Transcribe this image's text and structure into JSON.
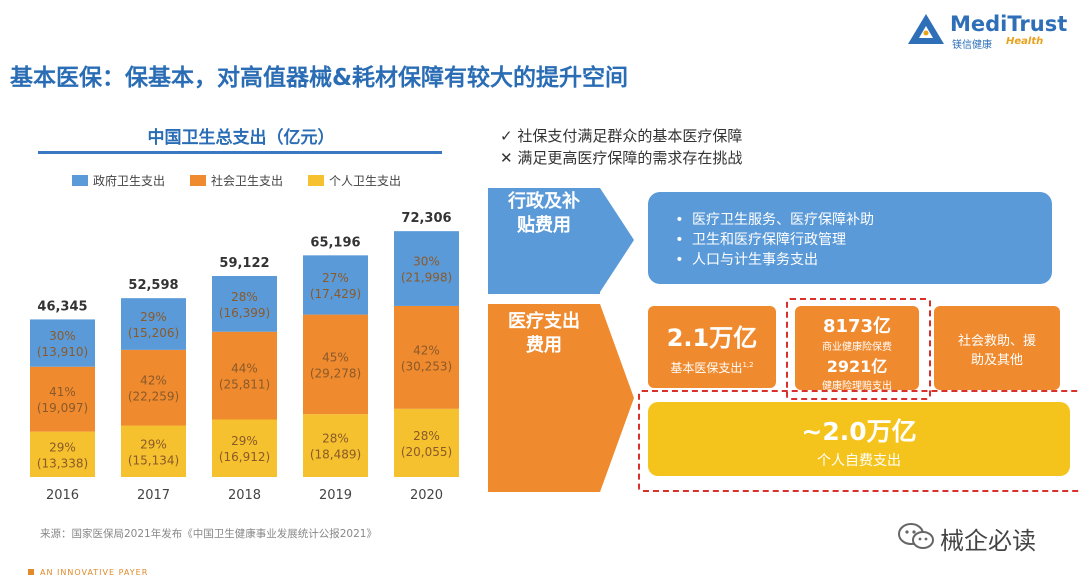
{
  "header": {
    "title": "基本医保：保基本，对高值器械&耗材保障有较大的提升空间",
    "logo_main": "MediTrust",
    "logo_sub": "镁信健康",
    "logo_health": "Health"
  },
  "chart_data": {
    "type": "bar",
    "stacked": true,
    "title": "中国卫生总支出（亿元）",
    "categories": [
      "2016",
      "2017",
      "2018",
      "2019",
      "2020"
    ],
    "totals": [
      "46,345",
      "52,598",
      "59,122",
      "65,196",
      "72,306"
    ],
    "series": [
      {
        "name": "个人卫生支出",
        "color": "#f5c12e",
        "values": [
          13338,
          15134,
          16912,
          18489,
          20055
        ],
        "pct_labels": [
          "29%",
          "29%",
          "29%",
          "28%",
          "28%"
        ],
        "value_labels": [
          "(13,338)",
          "(15,134)",
          "(16,912)",
          "(18,489)",
          "(20,055)"
        ]
      },
      {
        "name": "社会卫生支出",
        "color": "#f08a2e",
        "values": [
          19097,
          22259,
          25811,
          29278,
          30253
        ],
        "pct_labels": [
          "41%",
          "42%",
          "44%",
          "45%",
          "42%"
        ],
        "value_labels": [
          "(19,097)",
          "(22,259)",
          "(25,811)",
          "(29,278)",
          "(30,253)"
        ]
      },
      {
        "name": "政府卫生支出",
        "color": "#5b9ad8",
        "values": [
          13910,
          15206,
          16399,
          17429,
          21998
        ],
        "pct_labels": [
          "30%",
          "29%",
          "28%",
          "27%",
          "30%"
        ],
        "value_labels": [
          "(13,910)",
          "(15,206)",
          "(16,399)",
          "(17,429)",
          "(21,998)"
        ]
      }
    ],
    "legend": [
      "政府卫生支出",
      "社会卫生支出",
      "个人卫生支出"
    ],
    "legend_position": "top-left",
    "ylim": [
      0,
      80000
    ],
    "grid": false
  },
  "source": "来源：国家医保局2021年发布《中国卫生健康事业发展统计公报2021》",
  "footer": "AN INNOVATIVE PAYER",
  "right": {
    "check_line": "社保支付满足群众的基本医疗保障",
    "cross_line": "满足更高医疗保障的需求存在挑战",
    "check_mark": "✓",
    "cross_mark": "✕",
    "cat_admin": "行政及补贴费用",
    "cat_medical": "医疗支出费用",
    "admin_items": [
      "医疗卫生服务、医疗保障补助",
      "卫生和医疗保障行政管理",
      "人口与计生事务支出"
    ],
    "basic_value": "2.1万亿",
    "basic_label": "基本医保支出",
    "basic_sup": "1,2",
    "commercial_premium_value": "8173亿",
    "commercial_premium_label": "商业健康险保费",
    "commercial_claims_value": "2921亿",
    "commercial_claims_label": "健康险理赔支出",
    "social_aid": "社会救助、援助及其他",
    "personal_value": "~2.0万亿",
    "personal_label": "个人自费支出"
  },
  "watermark": "械企必读"
}
